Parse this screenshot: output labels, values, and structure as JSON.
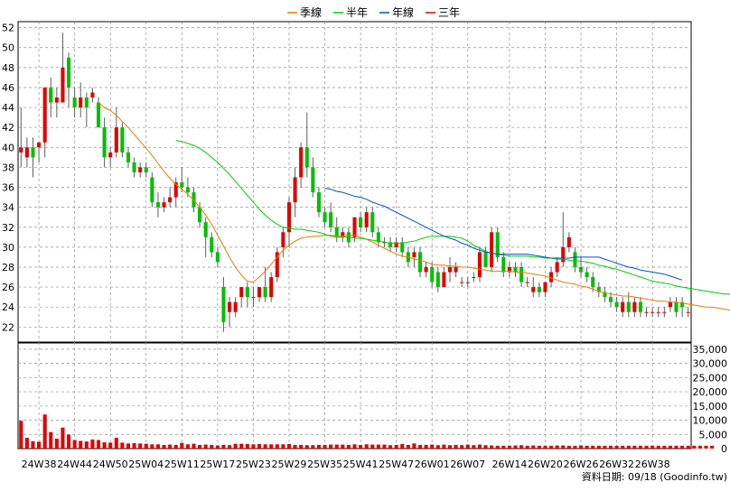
{
  "legend": [
    {
      "label": "季線",
      "color": "#f07800"
    },
    {
      "label": "半年",
      "color": "#00d000"
    },
    {
      "label": "年線",
      "color": "#0050d0"
    },
    {
      "label": "三年",
      "color": "#e00000"
    }
  ],
  "footer": {
    "source": "資料日期: 09/18  (Goodinfo.tw)"
  },
  "colors": {
    "up": "#e00000",
    "down": "#00c000",
    "wick": "#606060",
    "volume": "#e00000",
    "grid": "#909090"
  },
  "chart_data": {
    "type": "candlestick",
    "price_axis": {
      "ticks": [
        22,
        24,
        26,
        28,
        30,
        32,
        34,
        36,
        38,
        40,
        42,
        44,
        46,
        48,
        50,
        52
      ],
      "ylim": [
        20.4,
        52.6
      ]
    },
    "volume_axis": {
      "ticks": [
        0,
        5000,
        10000,
        15000,
        20000,
        25000,
        30000,
        35000
      ],
      "tick_labels": [
        "0",
        "5,000",
        "10,000",
        "15,000",
        "20,000",
        "25,000",
        "30,000",
        "35,000"
      ],
      "ylim": [
        0,
        37500
      ]
    },
    "x_tick_labels": [
      "24W38",
      "24W44",
      "24W50",
      "25W04",
      "25W11",
      "25W17",
      "25W23",
      "25W29",
      "25W35",
      "25W41",
      "25W47",
      "26W01",
      "26W07",
      "26W14",
      "26W20",
      "26W26",
      "26W32",
      "26W38"
    ],
    "x_tick_index": [
      3,
      9,
      15,
      21,
      27,
      33,
      39,
      45,
      51,
      57,
      63,
      69,
      75,
      82,
      88,
      94,
      100,
      106
    ],
    "candles": [
      {
        "o": 39.5,
        "h": 44,
        "l": 38,
        "c": 40
      },
      {
        "o": 39,
        "h": 41,
        "l": 38,
        "c": 40
      },
      {
        "o": 40,
        "h": 41,
        "l": 37,
        "c": 39
      },
      {
        "o": 40,
        "h": 40.5,
        "l": 38.5,
        "c": 40.5
      },
      {
        "o": 40.5,
        "h": 46,
        "l": 39,
        "c": 46
      },
      {
        "o": 46,
        "h": 47,
        "l": 43,
        "c": 44.5
      },
      {
        "o": 44.5,
        "h": 46,
        "l": 43,
        "c": 45
      },
      {
        "o": 44.5,
        "h": 51.5,
        "l": 44.5,
        "c": 48
      },
      {
        "o": 49,
        "h": 49.5,
        "l": 44,
        "c": 46
      },
      {
        "o": 45,
        "h": 46,
        "l": 43,
        "c": 44
      },
      {
        "o": 44,
        "h": 46.5,
        "l": 43,
        "c": 45
      },
      {
        "o": 45,
        "h": 45.5,
        "l": 42,
        "c": 44
      },
      {
        "o": 45,
        "h": 46,
        "l": 44.5,
        "c": 45.5
      },
      {
        "o": 44.5,
        "h": 45,
        "l": 42,
        "c": 42
      },
      {
        "o": 42,
        "h": 43,
        "l": 38,
        "c": 39
      },
      {
        "o": 39,
        "h": 40,
        "l": 38,
        "c": 39.5
      },
      {
        "o": 39.5,
        "h": 44,
        "l": 39,
        "c": 42
      },
      {
        "o": 42,
        "h": 42.5,
        "l": 39,
        "c": 39.5
      },
      {
        "o": 39.5,
        "h": 40,
        "l": 38,
        "c": 38.5
      },
      {
        "o": 38.5,
        "h": 39,
        "l": 37,
        "c": 37.5
      },
      {
        "o": 37.5,
        "h": 38.5,
        "l": 37,
        "c": 38
      },
      {
        "o": 38,
        "h": 38.5,
        "l": 37,
        "c": 37.5
      },
      {
        "o": 37,
        "h": 37.5,
        "l": 34,
        "c": 34.5
      },
      {
        "o": 34.5,
        "h": 35.5,
        "l": 33,
        "c": 34
      },
      {
        "o": 34,
        "h": 35,
        "l": 33.5,
        "c": 34.5
      },
      {
        "o": 34.5,
        "h": 36,
        "l": 34,
        "c": 35
      },
      {
        "o": 35,
        "h": 37,
        "l": 34,
        "c": 36.5
      },
      {
        "o": 36.5,
        "h": 38,
        "l": 35.5,
        "c": 36
      },
      {
        "o": 36,
        "h": 37,
        "l": 35,
        "c": 35.5
      },
      {
        "o": 35.5,
        "h": 36,
        "l": 33.5,
        "c": 34
      },
      {
        "o": 34,
        "h": 34.5,
        "l": 32,
        "c": 32.5
      },
      {
        "o": 32.5,
        "h": 33,
        "l": 29,
        "c": 31
      },
      {
        "o": 31,
        "h": 31.5,
        "l": 29,
        "c": 29.5
      },
      {
        "o": 29.5,
        "h": 30,
        "l": 28,
        "c": 28.5
      },
      {
        "o": 26,
        "h": 27,
        "l": 21.5,
        "c": 22.5
      },
      {
        "o": 23.5,
        "h": 25,
        "l": 22,
        "c": 24.5
      },
      {
        "o": 23.5,
        "h": 25,
        "l": 23,
        "c": 24.5
      },
      {
        "o": 25,
        "h": 26,
        "l": 24,
        "c": 26
      },
      {
        "o": 26,
        "h": 26.5,
        "l": 24,
        "c": 25
      },
      {
        "o": 25,
        "h": 26,
        "l": 24,
        "c": 25
      },
      {
        "o": 25,
        "h": 26,
        "l": 24.5,
        "c": 26
      },
      {
        "o": 26,
        "h": 28,
        "l": 24.5,
        "c": 25
      },
      {
        "o": 25,
        "h": 27.5,
        "l": 24.5,
        "c": 27
      },
      {
        "o": 27,
        "h": 30,
        "l": 26.5,
        "c": 29.5
      },
      {
        "o": 30,
        "h": 32,
        "l": 29,
        "c": 31.5
      },
      {
        "o": 31.5,
        "h": 35,
        "l": 30,
        "c": 34.5
      },
      {
        "o": 34.5,
        "h": 38,
        "l": 33,
        "c": 37
      },
      {
        "o": 37,
        "h": 40.5,
        "l": 36,
        "c": 40
      },
      {
        "o": 40,
        "h": 43.5,
        "l": 37,
        "c": 38
      },
      {
        "o": 38,
        "h": 39,
        "l": 35,
        "c": 35.5
      },
      {
        "o": 35.5,
        "h": 36,
        "l": 33,
        "c": 33.5
      },
      {
        "o": 33.5,
        "h": 34,
        "l": 32,
        "c": 32.5
      },
      {
        "o": 33.5,
        "h": 34.5,
        "l": 31.5,
        "c": 32
      },
      {
        "o": 32,
        "h": 33,
        "l": 30.5,
        "c": 31
      },
      {
        "o": 31,
        "h": 32,
        "l": 30.5,
        "c": 31.5
      },
      {
        "o": 31.5,
        "h": 32,
        "l": 30,
        "c": 30.5
      },
      {
        "o": 31,
        "h": 33,
        "l": 30.5,
        "c": 33
      },
      {
        "o": 33,
        "h": 33.5,
        "l": 31.5,
        "c": 32
      },
      {
        "o": 32,
        "h": 34,
        "l": 31.5,
        "c": 33.5
      },
      {
        "o": 33.5,
        "h": 34,
        "l": 31,
        "c": 31.5
      },
      {
        "o": 31.5,
        "h": 32,
        "l": 30,
        "c": 30.5
      },
      {
        "o": 30.5,
        "h": 31,
        "l": 30,
        "c": 30.5
      },
      {
        "o": 30.5,
        "h": 31,
        "l": 29.5,
        "c": 30
      },
      {
        "o": 30,
        "h": 31,
        "l": 29.5,
        "c": 30.5
      },
      {
        "o": 30.5,
        "h": 31,
        "l": 29,
        "c": 29.5
      },
      {
        "o": 29.5,
        "h": 30,
        "l": 28,
        "c": 28.5
      },
      {
        "o": 29,
        "h": 30,
        "l": 28,
        "c": 29.5
      },
      {
        "o": 29.5,
        "h": 30,
        "l": 27,
        "c": 27.5
      },
      {
        "o": 27.5,
        "h": 28.5,
        "l": 27,
        "c": 28
      },
      {
        "o": 28,
        "h": 28.5,
        "l": 26,
        "c": 26.5
      },
      {
        "o": 27.5,
        "h": 28,
        "l": 25.5,
        "c": 26
      },
      {
        "o": 26,
        "h": 28,
        "l": 26,
        "c": 27.5
      },
      {
        "o": 27.5,
        "h": 29,
        "l": 26.5,
        "c": 28
      },
      {
        "o": 27.5,
        "h": 28.5,
        "l": 27,
        "c": 28
      },
      {
        "o": 26.5,
        "h": 27,
        "l": 26,
        "c": 26.5
      },
      {
        "o": 26.5,
        "h": 27,
        "l": 26,
        "c": 26.5
      },
      {
        "o": 27,
        "h": 27.5,
        "l": 26.5,
        "c": 27
      },
      {
        "o": 27,
        "h": 30,
        "l": 26.5,
        "c": 29.5
      },
      {
        "o": 29.5,
        "h": 30,
        "l": 28,
        "c": 28
      },
      {
        "o": 28,
        "h": 32,
        "l": 27.5,
        "c": 31.5
      },
      {
        "o": 31.5,
        "h": 32,
        "l": 28.5,
        "c": 29
      },
      {
        "o": 29,
        "h": 29.5,
        "l": 27,
        "c": 27.5
      },
      {
        "o": 27.5,
        "h": 28.5,
        "l": 27,
        "c": 28
      },
      {
        "o": 28,
        "h": 28.5,
        "l": 27,
        "c": 27.5
      },
      {
        "o": 28,
        "h": 28.5,
        "l": 26,
        "c": 26.5
      },
      {
        "o": 26.5,
        "h": 27,
        "l": 26,
        "c": 26.5
      },
      {
        "o": 25.5,
        "h": 27,
        "l": 25,
        "c": 26
      },
      {
        "o": 26,
        "h": 26.5,
        "l": 25,
        "c": 25.5
      },
      {
        "o": 25.5,
        "h": 26.5,
        "l": 25,
        "c": 26.5
      },
      {
        "o": 26.5,
        "h": 28,
        "l": 26,
        "c": 27.5
      },
      {
        "o": 27.5,
        "h": 29,
        "l": 27,
        "c": 28.5
      },
      {
        "o": 28.5,
        "h": 33.5,
        "l": 28,
        "c": 30
      },
      {
        "o": 30,
        "h": 31.5,
        "l": 29.5,
        "c": 31
      },
      {
        "o": 29.5,
        "h": 30,
        "l": 27.5,
        "c": 28
      },
      {
        "o": 28,
        "h": 29,
        "l": 27,
        "c": 27.5
      },
      {
        "o": 27.5,
        "h": 28,
        "l": 26.5,
        "c": 27
      },
      {
        "o": 27,
        "h": 27.5,
        "l": 25.5,
        "c": 26
      },
      {
        "o": 26,
        "h": 26.5,
        "l": 25,
        "c": 25.5
      },
      {
        "o": 25.5,
        "h": 26,
        "l": 24.5,
        "c": 25
      },
      {
        "o": 25,
        "h": 25.5,
        "l": 24,
        "c": 24.5
      },
      {
        "o": 24.5,
        "h": 25,
        "l": 23.5,
        "c": 24
      },
      {
        "o": 23.5,
        "h": 25,
        "l": 23,
        "c": 24.5
      },
      {
        "o": 24.5,
        "h": 25.5,
        "l": 23,
        "c": 23.5
      },
      {
        "o": 23.5,
        "h": 25,
        "l": 23,
        "c": 24.5
      },
      {
        "o": 24.5,
        "h": 25,
        "l": 23,
        "c": 23.5
      },
      {
        "o": 23.5,
        "h": 24,
        "l": 23,
        "c": 23.5
      },
      {
        "o": 23.5,
        "h": 24,
        "l": 23,
        "c": 23.5
      },
      {
        "o": 23.5,
        "h": 24,
        "l": 23,
        "c": 23.5
      },
      {
        "o": 23.5,
        "h": 24,
        "l": 23,
        "c": 23.5
      },
      {
        "o": 24,
        "h": 25,
        "l": 23.5,
        "c": 24.5
      },
      {
        "o": 24.5,
        "h": 25,
        "l": 23,
        "c": 23.5
      },
      {
        "o": 24.5,
        "h": 25,
        "l": 23,
        "c": 24
      },
      {
        "o": 23.5,
        "h": 24,
        "l": 23,
        "c": 23.5
      }
    ],
    "volume": [
      9800,
      3800,
      2600,
      2400,
      12000,
      5800,
      3500,
      7400,
      4900,
      3000,
      2700,
      2500,
      3200,
      3000,
      2200,
      2100,
      3800,
      2100,
      1800,
      1900,
      1800,
      1700,
      1500,
      1500,
      1300,
      1400,
      1300,
      2000,
      1500,
      1700,
      1300,
      1400,
      1300,
      1100,
      1300,
      1200,
      1700,
      1700,
      1600,
      1500,
      1600,
      1500,
      1500,
      1500,
      1500,
      1600,
      1300,
      1300,
      1200,
      1200,
      1300,
      1300,
      1400,
      1400,
      1400,
      1300,
      1500,
      1300,
      1500,
      1400,
      1400,
      1400,
      1200,
      1300,
      1600,
      1300,
      1800,
      1300,
      1300,
      1400,
      1200,
      1400,
      1200,
      1300,
      1200,
      1400,
      1200,
      1400,
      1200,
      1100,
      1000,
      1000,
      1000,
      1100,
      1200,
      1000,
      1100,
      1000,
      1000,
      1000,
      1100,
      1100,
      1000,
      1000,
      1100,
      1000,
      1000,
      1000,
      1000,
      1000,
      1000,
      1000,
      1000,
      1000,
      1000,
      1000,
      1000,
      1000,
      1000,
      1000,
      1000,
      1000,
      1000,
      1000,
      1000,
      1000,
      1000
    ],
    "moving_averages": [
      {
        "name": "季線",
        "color": "#f07800",
        "start": 13,
        "values": [
          44.5,
          44,
          43.7,
          43.2,
          42.6,
          42,
          41.3,
          40.6,
          39.9,
          39.2,
          38.4,
          37.6,
          36.9,
          36.3,
          35.8,
          35.3,
          34.7,
          34,
          33.2,
          32.3,
          31.2,
          30.1,
          29,
          28,
          27.2,
          26.6,
          26.5,
          27,
          27.6,
          28.3,
          29,
          29.7,
          30.2,
          30.6,
          30.9,
          31,
          31.1,
          31.1,
          31.2,
          31.2,
          31.1,
          31.1,
          31.2,
          31.2,
          31,
          30.8,
          30.5,
          30.2,
          29.9,
          29.6,
          29.3,
          29.1,
          29,
          28.8,
          28.7,
          28.5,
          28.3,
          28.2,
          28.2,
          28.1,
          28.1,
          28,
          28,
          27.9,
          27.8,
          27.7,
          27.6,
          27.6,
          27.6,
          27.6,
          27.5,
          27.5,
          27.4,
          27.3,
          27.2,
          27.1,
          26.9,
          26.7,
          26.5,
          26.4,
          26.3,
          26.1,
          26,
          25.8,
          25.6,
          25.4,
          25.3,
          25.2,
          25.1,
          25.1,
          25,
          24.9,
          24.8,
          24.7,
          24.6,
          24.6,
          24.5,
          24.5,
          24.4,
          24.3,
          24.2,
          24.1,
          24,
          24,
          23.9,
          23.8,
          23.7,
          23.6
        ]
      },
      {
        "name": "半年",
        "color": "#00d000",
        "start": 26,
        "values": [
          40.7,
          40.6,
          40.4,
          40.2,
          39.9,
          39.5,
          39,
          38.5,
          37.9,
          37.3,
          36.6,
          35.9,
          35.2,
          34.5,
          33.8,
          33.2,
          32.7,
          32.3,
          32,
          31.9,
          31.8,
          31.8,
          31.7,
          31.6,
          31.5,
          31.3,
          31.1,
          31,
          31,
          31,
          30.9,
          30.9,
          30.8,
          30.7,
          30.6,
          30.5,
          30.4,
          30.4,
          30.4,
          30.5,
          30.6,
          30.8,
          31,
          31.1,
          31.1,
          31.1,
          31.1,
          31,
          30.9,
          30.6,
          30.2,
          29.9,
          29.6,
          29.4,
          29.3,
          29.2,
          29.1,
          29.1,
          29.1,
          29.1,
          29,
          29,
          28.9,
          28.9,
          28.8,
          28.8,
          28.7,
          28.6,
          28.6,
          28.5,
          28.4,
          28.2,
          28.1,
          27.9,
          27.8,
          27.6,
          27.4,
          27.2,
          27,
          26.8,
          26.6,
          26.5,
          26.4,
          26.3,
          26.1,
          26,
          25.9,
          25.8,
          25.7,
          25.6,
          25.5,
          25.4,
          25.3,
          25.3,
          25.3
        ]
      },
      {
        "name": "年線",
        "color": "#0050d0",
        "start": 51,
        "values": [
          35.9,
          35.8,
          35.6,
          35.5,
          35.3,
          35.1,
          35,
          34.8,
          34.5,
          34.3,
          34.1,
          33.8,
          33.5,
          33.2,
          32.9,
          32.6,
          32.3,
          32,
          31.7,
          31.4,
          31.1,
          30.9,
          30.7,
          30.4,
          30.2,
          29.9,
          29.7,
          29.5,
          29.4,
          29.3,
          29.3,
          29.3,
          29.3,
          29.3,
          29.3,
          29.2,
          29.1,
          29,
          28.9,
          28.9,
          28.9,
          28.9,
          29,
          29,
          29,
          29,
          29,
          28.8,
          28.6,
          28.4,
          28.2,
          28,
          27.9,
          27.7,
          27.6,
          27.5,
          27.4,
          27.3,
          27.1,
          26.9,
          26.7
        ]
      }
    ]
  }
}
